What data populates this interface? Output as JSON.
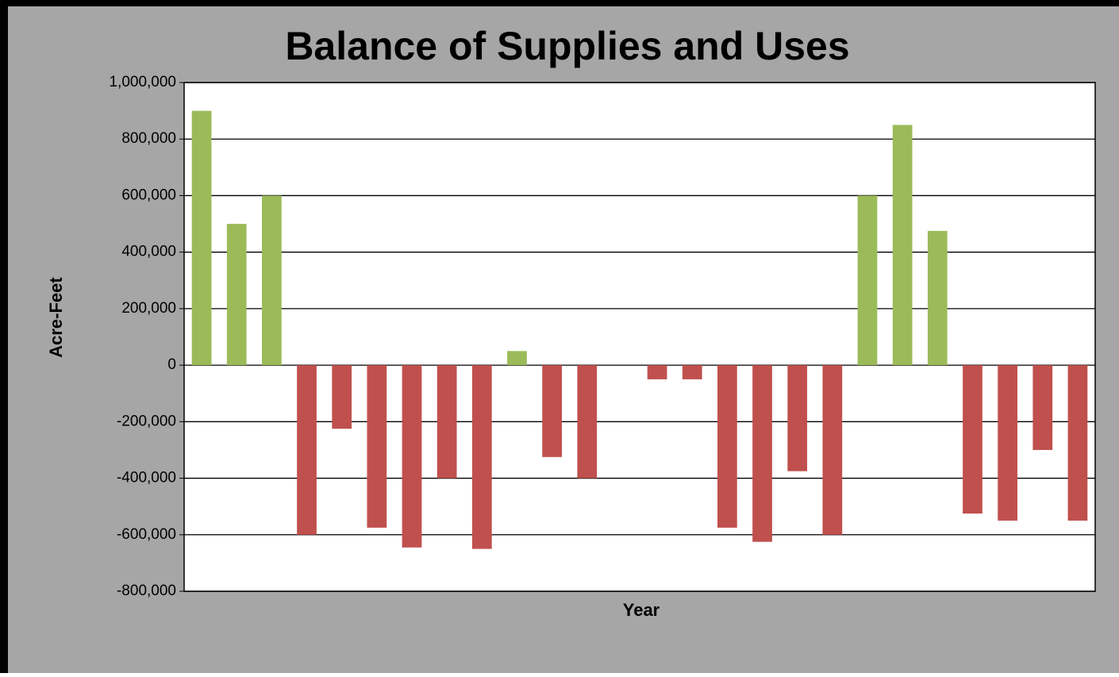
{
  "chart_data": {
    "type": "bar",
    "title": "Balance of Supplies and Uses",
    "y_label": "Acre-Feet",
    "x_label": "Year",
    "categories": [
      null,
      null,
      null,
      null,
      null,
      null,
      null,
      null,
      null,
      null,
      null,
      null,
      null,
      null,
      null,
      null,
      null,
      null,
      null,
      null,
      null,
      null,
      null,
      null,
      null,
      null
    ],
    "values": [
      900000,
      500000,
      600000,
      -600000,
      -225000,
      -575000,
      -645000,
      -400000,
      -650000,
      50000,
      -325000,
      -400000,
      null,
      -50000,
      -50000,
      -575000,
      -625000,
      -375000,
      -600000,
      600000,
      850000,
      475000,
      -525000,
      -550000,
      -300000,
      -550000
    ],
    "positive_color": "#9bbb59",
    "negative_color": "#c0504d",
    "ylim": [
      -800000,
      1000000
    ],
    "yticks": [
      {
        "value": -800000,
        "label": "-800,000"
      },
      {
        "value": -600000,
        "label": "-600,000"
      },
      {
        "value": -400000,
        "label": "-400,000"
      },
      {
        "value": -200000,
        "label": "-200,000"
      },
      0,
      {
        "value": 200000,
        "label": "200,000"
      },
      {
        "value": 400000,
        "label": "400,000"
      },
      {
        "value": 600000,
        "label": "600,000"
      },
      {
        "value": 800000,
        "label": "800,000"
      },
      {
        "value": 1000000,
        "label": "1,000,000"
      }
    ],
    "grid": true
  }
}
